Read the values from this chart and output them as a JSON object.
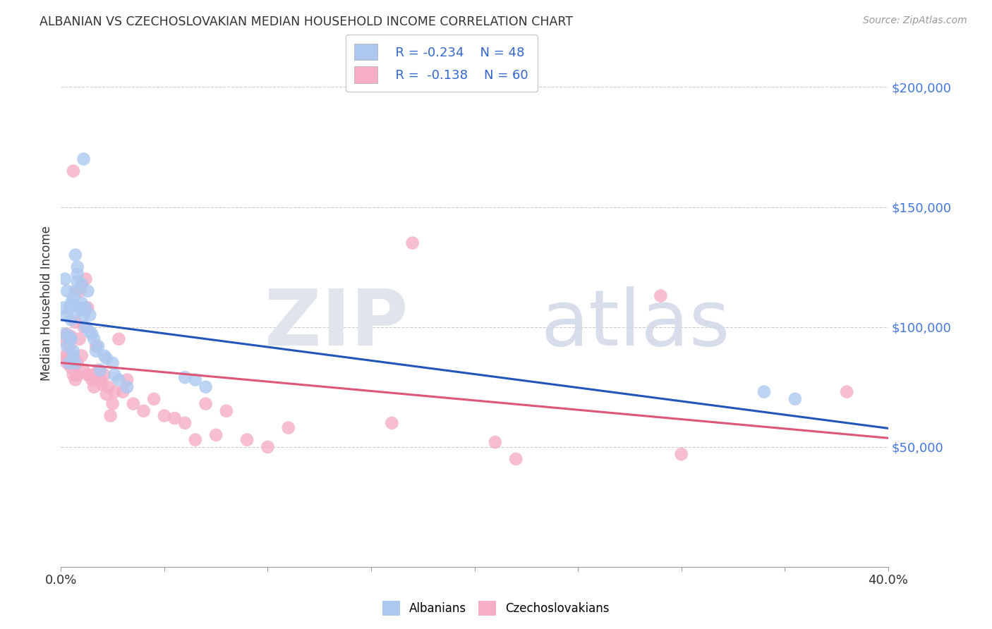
{
  "title": "ALBANIAN VS CZECHOSLOVAKIAN MEDIAN HOUSEHOLD INCOME CORRELATION CHART",
  "source": "Source: ZipAtlas.com",
  "ylabel": "Median Household Income",
  "ytick_values": [
    50000,
    100000,
    150000,
    200000
  ],
  "ylim": [
    0,
    220000
  ],
  "xlim": [
    0.0,
    0.4
  ],
  "legend_r_albanian": "R = -0.234",
  "legend_n_albanian": "N = 48",
  "legend_r_czech": "R =  -0.138",
  "legend_n_czech": "N = 60",
  "albanian_color": "#adc8ef",
  "czech_color": "#f5adc8",
  "albanian_line_color": "#2255bb",
  "czech_line_color": "#dd5577",
  "albanian_x": [
    0.001,
    0.002,
    0.002,
    0.003,
    0.003,
    0.003,
    0.004,
    0.004,
    0.004,
    0.005,
    0.005,
    0.005,
    0.006,
    0.006,
    0.006,
    0.007,
    0.007,
    0.007,
    0.008,
    0.008,
    0.008,
    0.009,
    0.009,
    0.01,
    0.01,
    0.011,
    0.011,
    0.012,
    0.012,
    0.013,
    0.014,
    0.014,
    0.015,
    0.016,
    0.017,
    0.018,
    0.019,
    0.021,
    0.022,
    0.025,
    0.026,
    0.028,
    0.032,
    0.06,
    0.065,
    0.07,
    0.34,
    0.355
  ],
  "albanian_y": [
    108000,
    97000,
    120000,
    105000,
    92000,
    115000,
    96000,
    85000,
    108000,
    103000,
    95000,
    110000,
    90000,
    112000,
    88000,
    85000,
    130000,
    115000,
    125000,
    119000,
    122000,
    107000,
    108000,
    118000,
    110000,
    105000,
    170000,
    108000,
    100000,
    115000,
    105000,
    98000,
    97000,
    95000,
    90000,
    92000,
    82000,
    88000,
    87000,
    85000,
    80000,
    78000,
    75000,
    79000,
    78000,
    75000,
    73000,
    70000
  ],
  "czech_x": [
    0.001,
    0.002,
    0.003,
    0.003,
    0.003,
    0.004,
    0.004,
    0.005,
    0.005,
    0.006,
    0.006,
    0.007,
    0.007,
    0.008,
    0.008,
    0.009,
    0.009,
    0.01,
    0.01,
    0.011,
    0.011,
    0.012,
    0.013,
    0.013,
    0.014,
    0.015,
    0.016,
    0.017,
    0.018,
    0.019,
    0.02,
    0.021,
    0.022,
    0.023,
    0.024,
    0.025,
    0.026,
    0.028,
    0.03,
    0.032,
    0.035,
    0.04,
    0.045,
    0.05,
    0.055,
    0.06,
    0.065,
    0.07,
    0.075,
    0.08,
    0.09,
    0.1,
    0.11,
    0.16,
    0.17,
    0.21,
    0.22,
    0.29,
    0.3,
    0.38
  ],
  "czech_y": [
    95000,
    88000,
    97000,
    88000,
    85000,
    92000,
    87000,
    96000,
    83000,
    80000,
    165000,
    102000,
    78000,
    85000,
    80000,
    115000,
    95000,
    118000,
    88000,
    100000,
    82000,
    120000,
    80000,
    108000,
    80000,
    78000,
    75000,
    92000,
    82000,
    78000,
    76000,
    80000,
    72000,
    75000,
    63000,
    68000,
    73000,
    95000,
    73000,
    78000,
    68000,
    65000,
    70000,
    63000,
    62000,
    60000,
    53000,
    68000,
    55000,
    65000,
    53000,
    50000,
    58000,
    60000,
    135000,
    52000,
    45000,
    113000,
    47000,
    73000
  ],
  "background_color": "#ffffff",
  "grid_color": "#cccccc",
  "xtick_positions": [
    0.0,
    0.05,
    0.1,
    0.15,
    0.2,
    0.25,
    0.3,
    0.35,
    0.4
  ],
  "xtick_labels_show": [
    "0.0%",
    "",
    "",
    "",
    "",
    "",
    "",
    "",
    "40.0%"
  ]
}
